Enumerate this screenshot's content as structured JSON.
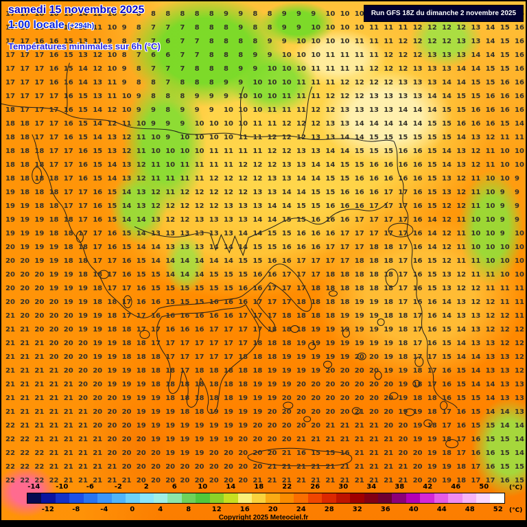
{
  "header": {
    "date_line": "samedi 15 novembre 2025",
    "time_line": "1:00 locale",
    "run_offset": "(+294h)",
    "subtitle": "Températures minimales sur 6h (°C)",
    "run_info": "Run GFS 18Z du dimanche 2 novembre 2025"
  },
  "footer": {
    "copyright": "Copyright 2025 Meteociel.fr"
  },
  "theme": {
    "title_blue": "#0a0ac8",
    "subtitle_blue": "#2828e0",
    "run_box_bg": "#000030",
    "run_box_text": "#ffffff",
    "land_orange": "#ff8a00",
    "green_patch": "#76db28",
    "yellow_patch": "#ffd84d",
    "pink_patch": "#ff6996",
    "number_color": "#333129"
  },
  "map": {
    "temp_rows": [
      "17 17 16 16 15 14 12 10 9 8 8 8 8 8 8 9 9 8 8 9 9 9 10 10 10 10 11 11 11 12 12 12 13 14 15 16",
      "17 17 16 16 15 13 11 10 9 8 7 7 7 8 8 8 9 8 8 9 9 10 10 10 10 11 11 11 12 12 12 12 13 14 15 16",
      "17 17 16 16 15 13 11 9 8 7 7 6 7 7 8 8 8 8 9 9 10 10 10 10 11 11 11 12 12 12 12 13 13 14 15 16",
      "17 17 17 16 15 13 12 10 8 7 6 6 7 7 8 8 8 9 9 10 10 10 11 11 11 11 12 12 12 13 13 13 14 14 15 16",
      "17 17 17 16 15 14 12 10 9 8 7 7 7 8 8 8 9 9 10 10 10 11 11 11 11 12 12 12 13 13 13 14 14 15 15 16",
      "17 17 17 16 16 14 13 11 9 8 8 7 8 8 8 9 9 10 10 10 11 11 11 12 12 12 12 13 13 13 14 14 15 15 16 16",
      "17 17 17 17 16 15 13 11 10 9 8 8 8 9 9 9 10 10 10 11 11 11 12 12 12 13 13 13 13 14 14 15 15 16 16 16",
      "18 17 17 17 16 15 14 12 10 9 9 8 9 9 9 10 10 10 11 11 11 12 12 13 13 13 13 14 14 14 15 15 16 16 16 16",
      "18 18 17 17 16 15 14 12 11 10 9 9 9 10 10 10 10 11 11 12 12 12 13 13 14 14 14 14 14 15 15 16 16 16 15 14",
      "18 18 17 17 16 15 14 13 12 11 10 9 10 10 10 10 11 11 12 12 12 13 13 14 14 15 15 15 15 15 15 14 13 12 11 11",
      "18 18 18 17 17 16 15 13 12 11 10 10 10 10 11 11 11 11 12 12 13 13 14 14 15 15 15 16 16 15 14 13 12 11 10 10",
      "18 18 18 17 17 16 15 14 13 12 11 10 11 11 11 11 12 12 12 13 13 14 14 15 15 16 16 16 16 15 14 13 12 11 10 10",
      "18 18 18 18 17 16 15 14 13 12 11 11 11 11 12 12 12 12 13 13 14 14 15 15 16 16 16 16 16 15 13 12 11 10 10 9",
      "19 18 18 18 17 17 16 15 14 13 12 11 12 12 12 12 12 13 13 14 14 15 15 16 16 16 17 17 16 15 13 12 11 10 9 9",
      "19 19 18 18 17 17 16 15 14 13 12 12 12 12 12 13 13 13 14 14 15 15 16 16 16 17 17 17 16 15 12 12 11 10 9 9",
      "19 19 19 18 18 17 16 15 14 14 13 12 12 13 13 13 13 14 14 15 15 16 16 16 17 17 17 17 16 14 12 11 10 10 9 9",
      "19 19 19 18 18 17 17 16 15 14 13 13 13 13 13 13 14 14 15 15 16 16 16 17 17 17 17 17 16 14 12 11 10 10 9 10",
      "20 19 19 19 18 18 17 16 15 14 14 13 13 13 14 14 14 15 15 16 16 16 17 17 17 18 18 17 16 14 12 11 10 10 10 10",
      "20 20 19 19 18 18 17 17 16 15 14 14 14 14 14 14 15 15 16 16 17 17 17 17 18 18 18 17 16 15 12 11 11 10 10 10",
      "20 20 20 19 19 18 18 17 16 15 15 14 14 14 15 15 15 16 16 17 17 17 18 18 18 18 18 17 16 15 13 12 11 11 10 10",
      "20 20 20 19 19 19 18 17 17 16 15 15 15 15 15 15 16 16 17 17 17 18 18 18 18 18 18 17 16 15 13 12 12 11 11 11",
      "20 20 20 20 19 19 18 18 17 16 16 15 15 15 16 16 16 17 17 17 18 18 18 18 19 19 18 17 16 16 14 13 12 12 11 11",
      "21 20 20 20 20 19 19 18 17 17 16 16 16 16 16 16 17 17 17 18 18 18 18 19 19 19 18 18 17 16 14 13 13 12 12 11",
      "21 21 20 20 20 19 19 18 18 17 17 16 16 16 17 17 17 17 18 18 18 19 19 19 19 19 19 18 17 16 15 14 13 12 12 12",
      "21 21 21 20 20 20 19 19 18 18 17 17 17 17 17 17 17 18 18 18 19 19 19 19 19 19 19 18 17 16 15 14 13 13 12 12",
      "21 21 21 20 20 20 19 19 18 18 18 17 17 17 17 17 18 18 18 19 19 19 19 19 20 20 19 18 17 17 15 14 14 13 13 12",
      "21 21 21 21 20 20 20 19 19 18 18 18 17 18 18 18 18 18 19 19 19 19 20 20 20 20 19 19 18 17 16 15 14 13 13 12",
      "21 21 21 21 21 20 20 19 19 19 18 18 18 18 18 18 18 19 19 19 20 20 20 20 20 20 20 19 18 17 16 15 14 14 13 13",
      "21 21 21 21 21 20 20 20 19 19 19 18 18 18 18 18 19 19 19 20 20 20 20 20 20 20 20 19 18 18 16 15 15 14 13 13",
      "21 21 21 21 21 21 20 20 20 19 19 19 18 18 19 19 19 19 20 20 20 20 20 20 21 20 20 19 19 18 17 16 15 14 14 13",
      "22 21 21 21 21 21 20 20 20 19 19 19 19 19 19 19 19 20 20 20 20 20 21 21 21 21 20 20 19 18 17 16 15 15 14 14",
      "22 22 21 21 21 21 21 20 20 20 19 19 19 19 19 19 20 20 20 20 21 21 21 21 21 21 21 20 19 19 18 17 16 15 15 14",
      "22 22 22 21 21 21 21 20 20 20 20 19 19 19 20 20 20 20 20 21 16 15 15 16 21 21 21 20 20 19 18 17 16 16 15 14",
      "22 22 22 21 21 21 21 21 20 20 20 20 20 20 20 20 20 20 21 21 21 21 21 21 21 21 21 21 20 19 19 18 17 16 15 15",
      "22 22 22 22 21 21 21 21 21 20 20 20 20 20 20 20 20 21 21 21 21 21 21 21 21 21 21 21 20 20 19 18 17 17 16 15"
    ]
  },
  "colorbar": {
    "min": -14,
    "max": 52,
    "step": 2,
    "unit": "(°C)",
    "top_labels": [
      "-14",
      "-10",
      "-6",
      "-2",
      "2",
      "6",
      "10",
      "14",
      "18",
      "22",
      "26",
      "30",
      "34",
      "38",
      "42",
      "46",
      "50"
    ],
    "bottom_labels": [
      "-12",
      "-8",
      "-4",
      "0",
      "4",
      "8",
      "12",
      "16",
      "20",
      "24",
      "28",
      "32",
      "36",
      "40",
      "44",
      "48",
      "52"
    ],
    "colors": [
      "#050a50",
      "#0a14a0",
      "#1432c8",
      "#1e50e6",
      "#2874f0",
      "#3c96fa",
      "#50b4fa",
      "#6ed2fa",
      "#8ce6fa",
      "#a0f0e6",
      "#8ce6aa",
      "#6ed25a",
      "#50c83c",
      "#8cd228",
      "#c8e020",
      "#faf078",
      "#fad23c",
      "#faaa14",
      "#fa8c00",
      "#fa6e00",
      "#f04600",
      "#dc2800",
      "#be1400",
      "#a00000",
      "#820014",
      "#6e0032",
      "#8c0078",
      "#b400b4",
      "#d428d4",
      "#e65ce6",
      "#f08cf0",
      "#f8b4f8",
      "#fcd8fc",
      "#ffffff"
    ]
  }
}
